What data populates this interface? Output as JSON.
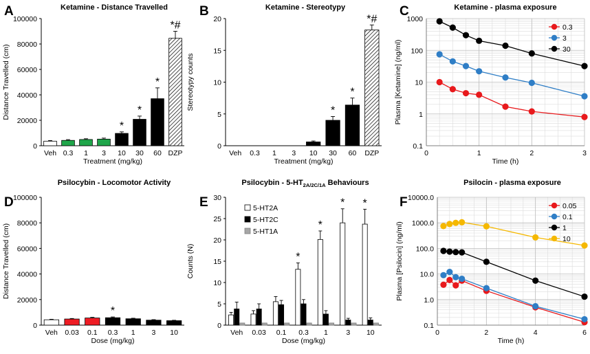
{
  "chart_data": [
    {
      "id": "A",
      "panel_label": "A",
      "type": "bar",
      "title": "Ketamine - Distance Travelled",
      "xlabel": "Treatment (mg/kg)",
      "ylabel": "Distance Travelled (cm)",
      "ylim": [
        0,
        100000
      ],
      "yticks": [
        0,
        20000,
        40000,
        60000,
        80000,
        100000
      ],
      "categories": [
        "Veh",
        "0.3",
        "1",
        "3",
        "10",
        "30",
        "60",
        "DZP"
      ],
      "values": [
        3600,
        4200,
        4900,
        5200,
        9700,
        20800,
        37000,
        84500
      ],
      "errors": [
        500,
        600,
        600,
        800,
        1200,
        2500,
        8500,
        5500
      ],
      "fills": [
        "white",
        "green",
        "green",
        "green",
        "black",
        "black",
        "black",
        "hatch"
      ],
      "annotations": [
        "",
        "",
        "",
        "",
        "*",
        "*",
        "*",
        "*#"
      ]
    },
    {
      "id": "B",
      "panel_label": "B",
      "type": "bar",
      "title": "Ketamine - Stereotypy",
      "xlabel": "Treatment (mg/kg)",
      "ylabel": "Stereotypy counts",
      "ylim": [
        0,
        20
      ],
      "yticks": [
        0,
        5,
        10,
        15,
        20
      ],
      "categories": [
        "Veh",
        "0.3",
        "1",
        "3",
        "10",
        "30",
        "60",
        "DZP"
      ],
      "values": [
        0,
        0,
        0,
        0,
        0.6,
        4.0,
        6.4,
        18.2
      ],
      "errors": [
        0,
        0,
        0,
        0,
        0.15,
        0.6,
        1.1,
        0.8
      ],
      "fills": [
        "black",
        "black",
        "black",
        "black",
        "black",
        "black",
        "black",
        "hatch"
      ],
      "annotations": [
        "",
        "",
        "",
        "",
        "",
        "*",
        "*",
        "*#"
      ]
    },
    {
      "id": "C",
      "panel_label": "C",
      "type": "line",
      "title": "Ketamine - plasma exposure",
      "xlabel": "Time (h)",
      "ylabel": "Plasma [Ketamine] (ng/ml)",
      "yscale": "log",
      "ylim": [
        0.1,
        1000
      ],
      "yticks": [
        0.1,
        1,
        10,
        100,
        1000
      ],
      "ytick_labels": [
        "0.1",
        "1",
        "10",
        "100",
        "1000"
      ],
      "xlim": [
        0,
        3
      ],
      "xticks": [
        0,
        1,
        2,
        3
      ],
      "xtick_labels": [
        "0",
        "1",
        "2",
        "3"
      ],
      "x": [
        0.25,
        0.5,
        0.75,
        1,
        1.5,
        2,
        3
      ],
      "series": [
        {
          "name": "0.3",
          "color": "#e8191c",
          "values": [
            10,
            6,
            4.5,
            4,
            1.7,
            1.2,
            0.8
          ]
        },
        {
          "name": "3",
          "color": "#2f7ec6",
          "values": [
            75,
            45,
            32,
            22,
            14,
            9.5,
            3.6
          ]
        },
        {
          "name": "30",
          "color": "#000000",
          "values": [
            820,
            520,
            300,
            200,
            140,
            80,
            32
          ]
        }
      ],
      "legend": "top-right"
    },
    {
      "id": "D",
      "panel_label": "D",
      "type": "bar",
      "title": "Psilocybin - Locomotor Activity",
      "xlabel": "Dose (mg/kg)",
      "ylabel": "Distance Travelled (cm)",
      "ylim": [
        0,
        100000
      ],
      "yticks": [
        0,
        20000,
        40000,
        60000,
        80000,
        100000
      ],
      "categories": [
        "Veh",
        "0.03",
        "0.1",
        "0.3",
        "1",
        "3",
        "10"
      ],
      "values": [
        4200,
        4800,
        5600,
        5800,
        5000,
        3900,
        3500
      ],
      "errors": [
        400,
        400,
        500,
        600,
        400,
        400,
        300
      ],
      "fills": [
        "white",
        "red",
        "red",
        "black",
        "black",
        "black",
        "black"
      ],
      "annotations": [
        "",
        "",
        "",
        "*",
        "",
        "",
        ""
      ]
    },
    {
      "id": "E",
      "panel_label": "E",
      "type": "bar",
      "title_parts": [
        "Psilocybin - 5-HT",
        "2A/2C/1A",
        " Behaviours"
      ],
      "xlabel": "Dose (mg/kg)",
      "ylabel": "Counts (N)",
      "ylim": [
        0,
        30
      ],
      "yticks": [
        0,
        5,
        10,
        15,
        20,
        25,
        30
      ],
      "categories": [
        "Veh",
        "0.03",
        "0.1",
        "0.3",
        "1",
        "3",
        "10"
      ],
      "series": [
        {
          "name": "5-HT2A",
          "color": "#ffffff",
          "values": [
            2.4,
            2.6,
            5.5,
            13.1,
            20.1,
            24.0,
            23.7
          ],
          "errors": [
            0.6,
            0.8,
            1.2,
            1.5,
            2.0,
            3.3,
            3.5
          ]
        },
        {
          "name": "5-HT2C",
          "color": "#000000",
          "values": [
            3.8,
            3.8,
            4.8,
            5.0,
            2.6,
            1.2,
            1.2
          ],
          "errors": [
            1.6,
            1.2,
            1.0,
            1.0,
            0.8,
            0.4,
            0.5
          ]
        },
        {
          "name": "5-HT1A",
          "color": "#a6a6a6",
          "values": [
            0.5,
            0.5,
            0.5,
            0.5,
            0.5,
            0.5,
            0.5
          ],
          "errors": [
            0,
            0,
            0,
            0,
            0,
            0,
            0
          ]
        }
      ],
      "annotations": [
        "",
        "",
        "",
        "*",
        "*",
        "*",
        "*"
      ],
      "legend": "top-left"
    },
    {
      "id": "F",
      "panel_label": "F",
      "type": "line",
      "title": "Psilocin - plasma exposure",
      "xlabel": "Time (h)",
      "ylabel": "Plasma [Psilocin] (ng/ml)",
      "yscale": "log",
      "ylim": [
        0.1,
        10000
      ],
      "yticks": [
        0.1,
        1,
        10,
        100,
        1000,
        10000
      ],
      "ytick_labels": [
        "0.1",
        "1.0",
        "10.0",
        "100.0",
        "1000.0",
        "10000.0"
      ],
      "xlim": [
        0,
        6
      ],
      "xticks": [
        0,
        2,
        4,
        6
      ],
      "xtick_labels": [
        "0",
        "2",
        "4",
        "6"
      ],
      "x": [
        0.25,
        0.5,
        0.75,
        1,
        2,
        4,
        6
      ],
      "series": [
        {
          "name": "0.05",
          "color": "#e8191c",
          "values": [
            3.8,
            5.8,
            3.6,
            5.5,
            2.2,
            0.5,
            0.13
          ]
        },
        {
          "name": "0.1",
          "color": "#2f7ec6",
          "values": [
            9,
            12,
            7.5,
            6.5,
            2.8,
            0.55,
            0.17
          ]
        },
        {
          "name": "1",
          "color": "#000000",
          "values": [
            80,
            75,
            72,
            70,
            30,
            5.5,
            1.3
          ]
        },
        {
          "name": "10",
          "color": "#f5b800",
          "values": [
            750,
            900,
            1000,
            1050,
            730,
            270,
            130
          ]
        }
      ],
      "legend": "top-right"
    }
  ]
}
